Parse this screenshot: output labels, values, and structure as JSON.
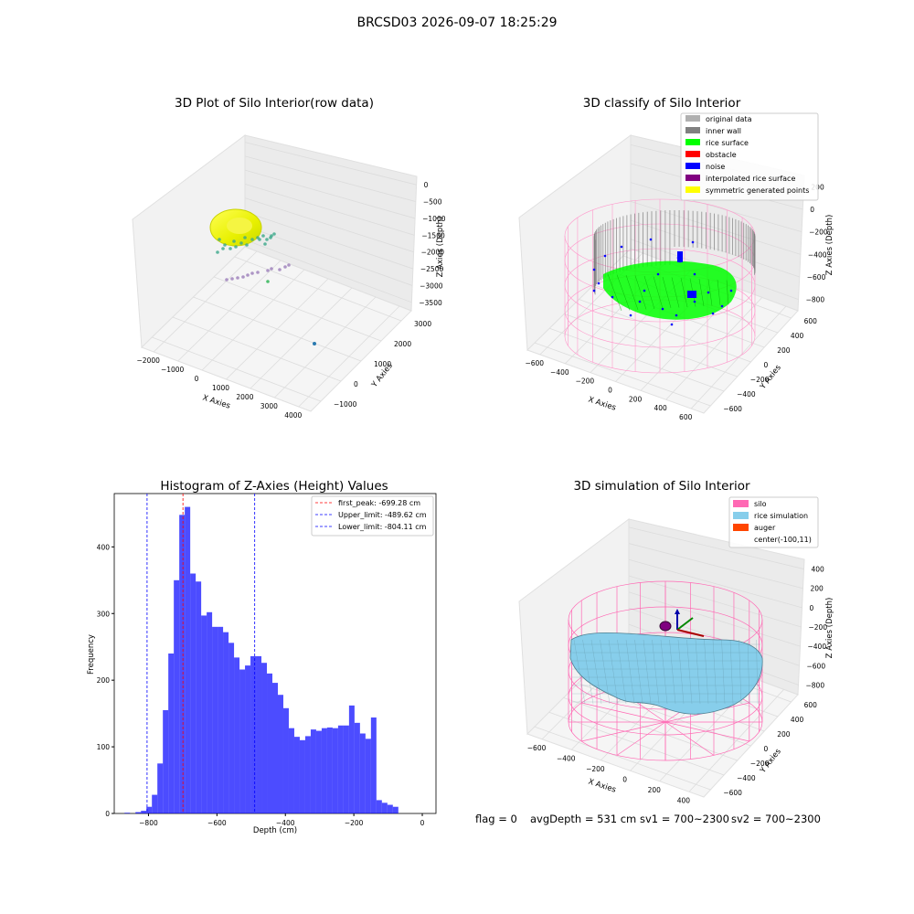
{
  "suptitle": "BRCSD03 2026-09-07 18:25:29",
  "footer": {
    "flag": "flag = 0",
    "avg_depth": "avgDepth = 531 cm",
    "sv1": "sv1 = 700~2300",
    "sv2": "sv2 = 700~2300"
  },
  "chart_data": [
    {
      "type": "scatter",
      "title": "3D Plot of Silo Interior(row data)",
      "xlabel": "X Axies",
      "ylabel": "Y Axies",
      "zlabel": "Z Axies (Depth)",
      "xticks": [
        "−2000",
        "−1000",
        "0",
        "1000",
        "2000",
        "3000",
        "4000"
      ],
      "yticks": [
        "−1000",
        "0",
        "1000",
        "2000",
        "3000"
      ],
      "zticks": [
        "0",
        "−500",
        "−1000",
        "−1500",
        "−2000",
        "−2500",
        "−3000",
        "−3500"
      ],
      "xlim": [
        -2300,
        4200
      ],
      "ylim": [
        -1300,
        3300
      ],
      "zlim": [
        -3700,
        200
      ],
      "colormap": "viridis"
    },
    {
      "type": "scatter",
      "title": "3D classify of Silo Interior",
      "xlabel": "X Axies",
      "ylabel": "Y Axies",
      "zlabel": "Z Axies (Depth)",
      "xticks": [
        "−600",
        "−400",
        "−200",
        "0",
        "200",
        "400",
        "600"
      ],
      "yticks": [
        "−600",
        "−400",
        "−200",
        "0",
        "200",
        "400",
        "600"
      ],
      "zticks": [
        "200",
        "0",
        "−200",
        "−400",
        "−600",
        "−800"
      ],
      "legend_position": "upper-right",
      "legend": [
        {
          "name": "original data",
          "color": "#b0b0b0"
        },
        {
          "name": "inner wall",
          "color": "#808080"
        },
        {
          "name": "rice surface",
          "color": "#00ff00"
        },
        {
          "name": "obstacle",
          "color": "#ff0000"
        },
        {
          "name": "noise",
          "color": "#0000ff"
        },
        {
          "name": "interpolated rice surface",
          "color": "#800080"
        },
        {
          "name": "symmetric generated points",
          "color": "#ffff00"
        }
      ]
    },
    {
      "type": "bar",
      "title": "Histogram of Z-Axies (Height) Values",
      "xlabel": "Depth (cm)",
      "ylabel": "Frequency",
      "xlim": [
        -900,
        40
      ],
      "ylim": [
        0,
        480
      ],
      "xticks": [
        -800,
        -600,
        -400,
        -200,
        0
      ],
      "yticks": [
        0,
        100,
        200,
        300,
        400
      ],
      "bin_width": 16,
      "bins_start": [
        -870,
        -854,
        -838,
        -822,
        -806,
        -790,
        -774,
        -758,
        -742,
        -726,
        -710,
        -694,
        -678,
        -662,
        -646,
        -630,
        -614,
        -598,
        -582,
        -566,
        -550,
        -534,
        -518,
        -502,
        -486,
        -470,
        -454,
        -438,
        -422,
        -406,
        -390,
        -374,
        -358,
        -342,
        -326,
        -310,
        -294,
        -278,
        -262,
        -246,
        -230,
        -214,
        -198,
        -182,
        -166,
        -150,
        -134,
        -118,
        -102,
        -86,
        -70,
        -54,
        -38,
        -22,
        -6
      ],
      "values": [
        1,
        0,
        2,
        4,
        10,
        28,
        75,
        155,
        240,
        350,
        448,
        460,
        360,
        348,
        297,
        302,
        280,
        280,
        272,
        256,
        234,
        216,
        222,
        236,
        236,
        226,
        210,
        196,
        178,
        158,
        128,
        115,
        110,
        116,
        126,
        124,
        128,
        129,
        128,
        132,
        132,
        162,
        136,
        120,
        112,
        144,
        20,
        16,
        13,
        10,
        0,
        0,
        0,
        0,
        0
      ],
      "vlines": [
        {
          "x": -699.28,
          "color": "#ff0000",
          "label": "first_peak: -699.28 cm"
        },
        {
          "x": -489.62,
          "color": "#0000ff",
          "label": "Upper_limit: -489.62 cm"
        },
        {
          "x": -804.11,
          "color": "#0000ff",
          "label": "Lower_limit: -804.11 cm"
        }
      ],
      "bar_color": "#0000ff",
      "legend_position": "upper-right"
    },
    {
      "type": "scatter",
      "title": "3D simulation of Silo Interior",
      "xlabel": "X Axies",
      "ylabel": "Y Axies",
      "zlabel": "Z Axies (Depth)",
      "xticks": [
        "−600",
        "−400",
        "−200",
        "0",
        "200",
        "400"
      ],
      "yticks": [
        "−600",
        "−400",
        "−200",
        "0",
        "200",
        "400",
        "600"
      ],
      "zticks": [
        "400",
        "200",
        "0",
        "−200",
        "−400",
        "−600",
        "−800"
      ],
      "legend_position": "upper-right",
      "legend": [
        {
          "name": "silo",
          "color": "#ff69b4"
        },
        {
          "name": "rice simulation",
          "color": "#87ceeb"
        },
        {
          "name": "auger",
          "color": "#ff4500"
        },
        {
          "name": "center(-100,11)",
          "color": "none"
        }
      ]
    }
  ]
}
